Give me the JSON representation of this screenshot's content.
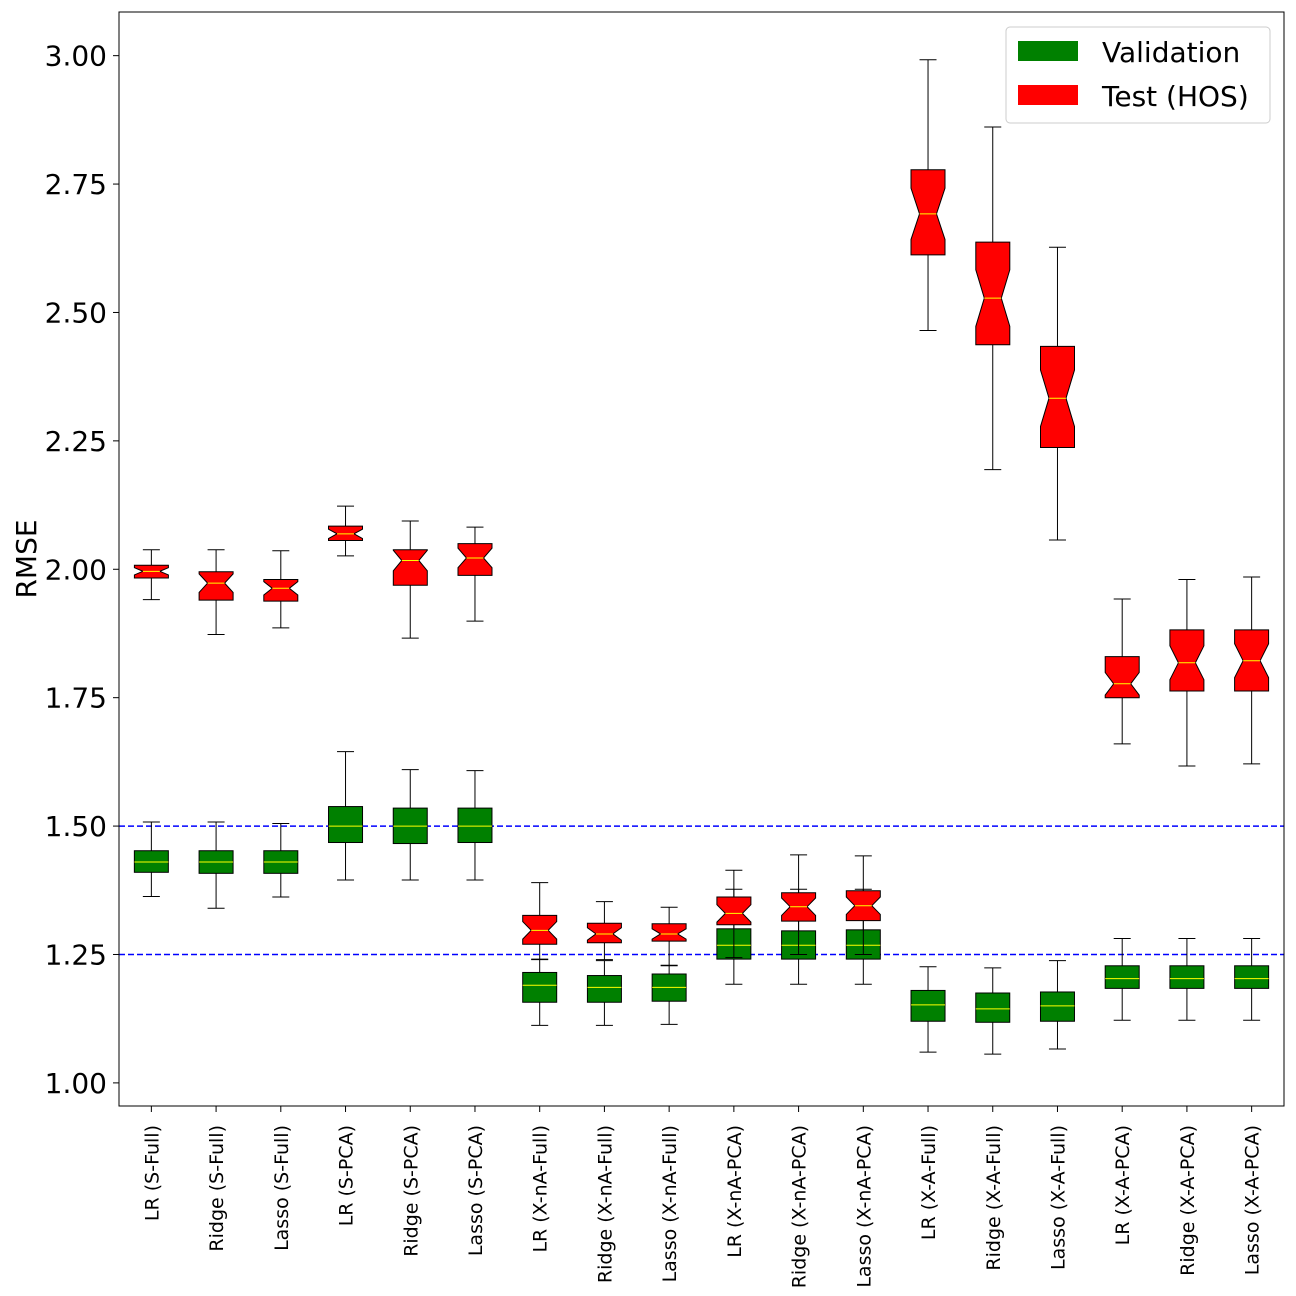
{
  "chart_data": {
    "type": "boxplot",
    "ylabel": "RMSE",
    "xlabel": "",
    "ylim": [
      0.955,
      3.085
    ],
    "yticks": [
      1.0,
      1.25,
      1.5,
      1.75,
      2.0,
      2.25,
      2.5,
      2.75,
      3.0
    ],
    "ytick_labels": [
      "1.00",
      "1.25",
      "1.50",
      "1.75",
      "2.00",
      "2.25",
      "2.50",
      "2.75",
      "3.00"
    ],
    "grid": false,
    "legend_position": "top-right",
    "reference_lines": [
      {
        "y": 1.5,
        "color": "#0000ff",
        "style": "dashed"
      },
      {
        "y": 1.25,
        "color": "#0000ff",
        "style": "dashed"
      }
    ],
    "categories": [
      "LR (S-Full)",
      "Ridge (S-Full)",
      "Lasso (S-Full)",
      "LR (S-PCA)",
      "Ridge (S-PCA)",
      "Lasso (S-PCA)",
      "LR (X-nA-Full)",
      "Ridge (X-nA-Full)",
      "Lasso (X-nA-Full)",
      "LR (X-nA-PCA)",
      "Ridge (X-nA-PCA)",
      "Lasso (X-nA-PCA)",
      "LR (X-A-Full)",
      "Ridge (X-A-Full)",
      "Lasso (X-A-Full)",
      "LR (X-A-PCA)",
      "Ridge (X-A-PCA)",
      "Lasso (X-A-PCA)"
    ],
    "series": [
      {
        "name": "Validation",
        "color": "#008000",
        "notched": false,
        "boxes": [
          {
            "whislo": 1.363,
            "q1": 1.41,
            "med": 1.43,
            "q3": 1.452,
            "whishi": 1.508
          },
          {
            "whislo": 1.34,
            "q1": 1.408,
            "med": 1.43,
            "q3": 1.452,
            "whishi": 1.508
          },
          {
            "whislo": 1.362,
            "q1": 1.408,
            "med": 1.43,
            "q3": 1.452,
            "whishi": 1.505
          },
          {
            "whislo": 1.395,
            "q1": 1.468,
            "med": 1.5,
            "q3": 1.538,
            "whishi": 1.645
          },
          {
            "whislo": 1.395,
            "q1": 1.466,
            "med": 1.5,
            "q3": 1.535,
            "whishi": 1.61
          },
          {
            "whislo": 1.395,
            "q1": 1.468,
            "med": 1.5,
            "q3": 1.535,
            "whishi": 1.608
          },
          {
            "whislo": 1.112,
            "q1": 1.157,
            "med": 1.19,
            "q3": 1.215,
            "whishi": 1.24
          },
          {
            "whislo": 1.112,
            "q1": 1.157,
            "med": 1.186,
            "q3": 1.209,
            "whishi": 1.238
          },
          {
            "whislo": 1.114,
            "q1": 1.159,
            "med": 1.186,
            "q3": 1.212,
            "whishi": 1.228
          },
          {
            "whislo": 1.192,
            "q1": 1.241,
            "med": 1.268,
            "q3": 1.3,
            "whishi": 1.377
          },
          {
            "whislo": 1.192,
            "q1": 1.241,
            "med": 1.268,
            "q3": 1.296,
            "whishi": 1.377
          },
          {
            "whislo": 1.192,
            "q1": 1.241,
            "med": 1.268,
            "q3": 1.298,
            "whishi": 1.377
          },
          {
            "whislo": 1.06,
            "q1": 1.12,
            "med": 1.152,
            "q3": 1.18,
            "whishi": 1.226
          },
          {
            "whislo": 1.056,
            "q1": 1.118,
            "med": 1.144,
            "q3": 1.175,
            "whishi": 1.224
          },
          {
            "whislo": 1.066,
            "q1": 1.12,
            "med": 1.15,
            "q3": 1.177,
            "whishi": 1.238
          },
          {
            "whislo": 1.122,
            "q1": 1.184,
            "med": 1.203,
            "q3": 1.228,
            "whishi": 1.281
          },
          {
            "whislo": 1.122,
            "q1": 1.184,
            "med": 1.203,
            "q3": 1.228,
            "whishi": 1.281
          },
          {
            "whislo": 1.122,
            "q1": 1.184,
            "med": 1.203,
            "q3": 1.228,
            "whishi": 1.281
          }
        ]
      },
      {
        "name": "Test (HOS)",
        "color": "#ff0000",
        "notched": true,
        "boxes": [
          {
            "whislo": 1.941,
            "q1": 1.983,
            "med": 1.996,
            "q3": 2.008,
            "whishi": 2.038,
            "notch": 0.007
          },
          {
            "whislo": 1.873,
            "q1": 1.94,
            "med": 1.973,
            "q3": 1.995,
            "whishi": 2.038,
            "notch": 0.018
          },
          {
            "whislo": 1.886,
            "q1": 1.938,
            "med": 1.963,
            "q3": 1.98,
            "whishi": 2.036,
            "notch": 0.013
          },
          {
            "whislo": 2.026,
            "q1": 2.056,
            "med": 2.069,
            "q3": 2.084,
            "whishi": 2.123,
            "notch": 0.009
          },
          {
            "whislo": 1.866,
            "q1": 1.969,
            "med": 2.017,
            "q3": 2.038,
            "whishi": 2.094,
            "notch": 0.02
          },
          {
            "whislo": 1.899,
            "q1": 1.988,
            "med": 2.022,
            "q3": 2.05,
            "whishi": 2.082,
            "notch": 0.019
          },
          {
            "whislo": 1.241,
            "q1": 1.27,
            "med": 1.297,
            "q3": 1.326,
            "whishi": 1.39,
            "notch": 0.017
          },
          {
            "whislo": 1.24,
            "q1": 1.273,
            "med": 1.29,
            "q3": 1.311,
            "whishi": 1.353,
            "notch": 0.012
          },
          {
            "whislo": 1.229,
            "q1": 1.276,
            "med": 1.29,
            "q3": 1.31,
            "whishi": 1.342,
            "notch": 0.01
          },
          {
            "whislo": 1.244,
            "q1": 1.308,
            "med": 1.33,
            "q3": 1.362,
            "whishi": 1.414,
            "notch": 0.017
          },
          {
            "whislo": 1.25,
            "q1": 1.315,
            "med": 1.343,
            "q3": 1.37,
            "whishi": 1.444,
            "notch": 0.017
          },
          {
            "whislo": 1.25,
            "q1": 1.316,
            "med": 1.345,
            "q3": 1.374,
            "whishi": 1.442,
            "notch": 0.017
          },
          {
            "whislo": 2.465,
            "q1": 2.612,
            "med": 2.692,
            "q3": 2.778,
            "whishi": 2.992,
            "notch": 0.05
          },
          {
            "whislo": 2.194,
            "q1": 2.437,
            "med": 2.528,
            "q3": 2.637,
            "whishi": 2.861,
            "notch": 0.055
          },
          {
            "whislo": 2.057,
            "q1": 2.237,
            "med": 2.333,
            "q3": 2.434,
            "whishi": 2.627,
            "notch": 0.055
          },
          {
            "whislo": 1.66,
            "q1": 1.75,
            "med": 1.777,
            "q3": 1.83,
            "whishi": 1.942,
            "notch": 0.022
          },
          {
            "whislo": 1.617,
            "q1": 1.763,
            "med": 1.818,
            "q3": 1.882,
            "whishi": 1.98,
            "notch": 0.033
          },
          {
            "whislo": 1.621,
            "q1": 1.763,
            "med": 1.822,
            "q3": 1.882,
            "whishi": 1.985,
            "notch": 0.033
          }
        ]
      }
    ]
  }
}
